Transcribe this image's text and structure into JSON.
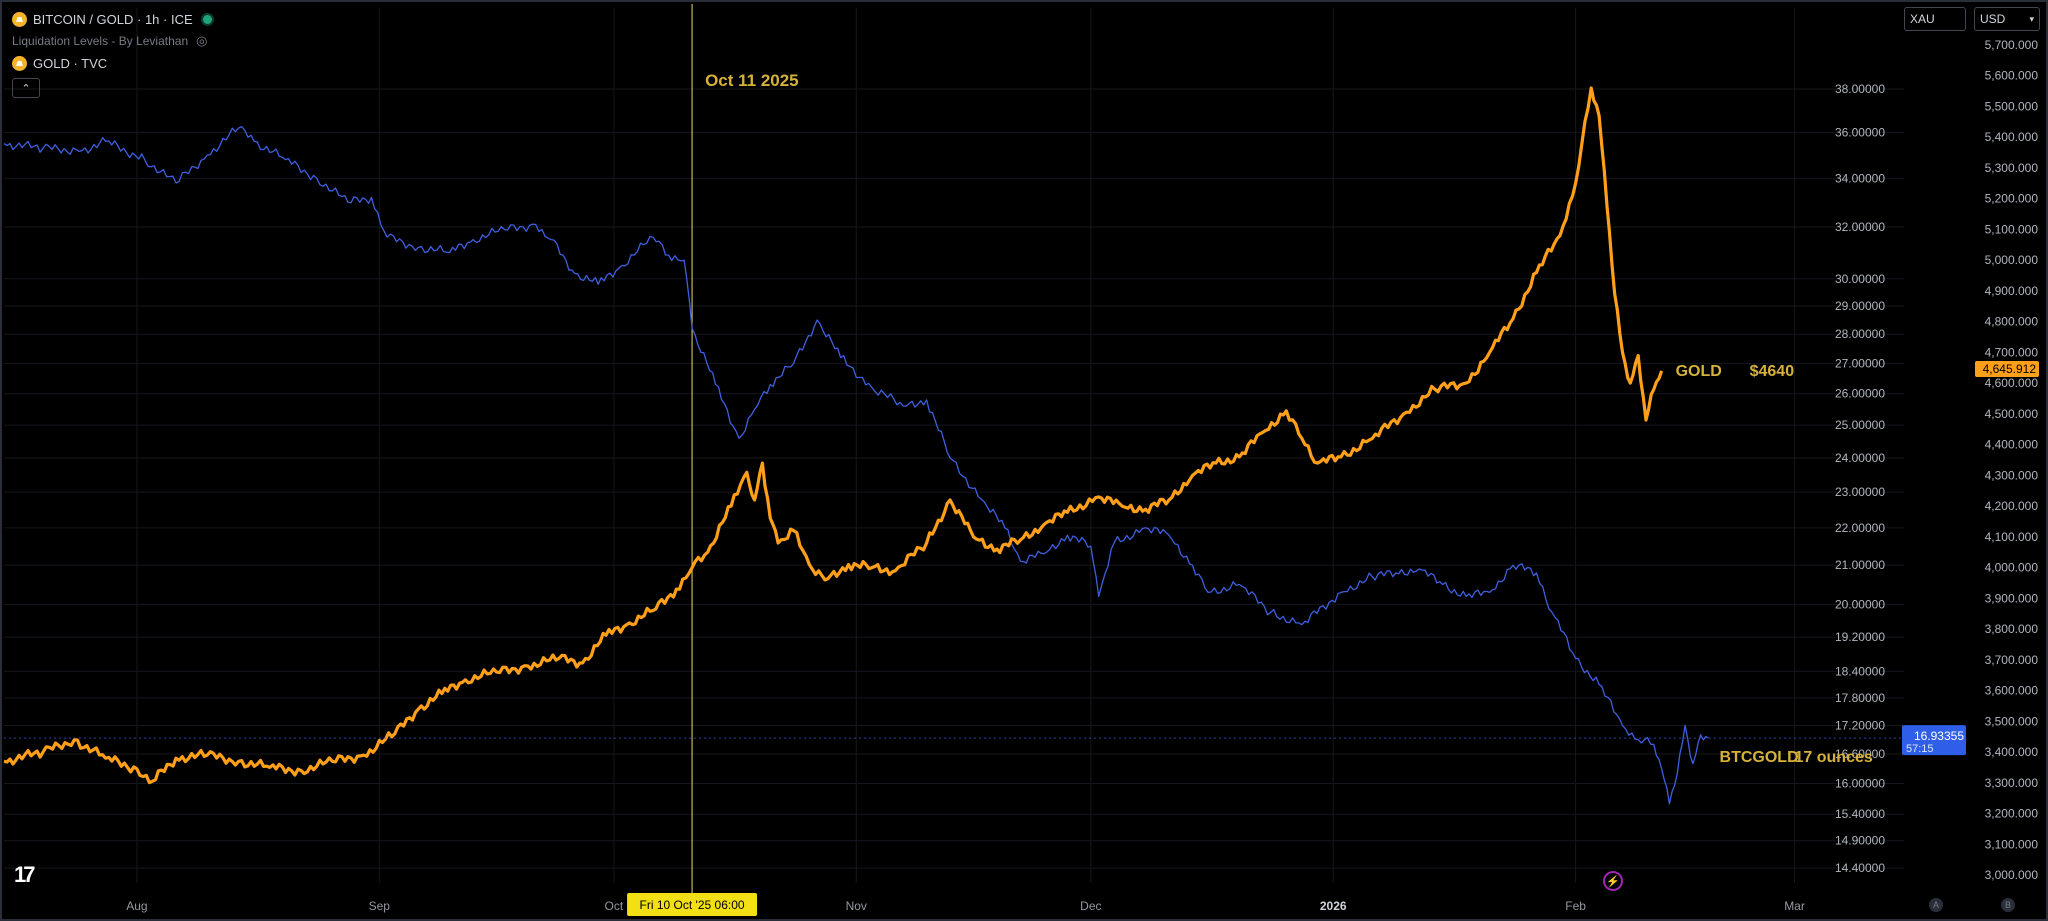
{
  "legend": {
    "symbol_title": "BITCOIN / GOLD · 1h · ICE",
    "indicator": "Liquidation Levels - By Leviathan",
    "overlay": "GOLD · TVC"
  },
  "controls": {
    "left_box": "XAU",
    "right_box": "USD"
  },
  "footer": {
    "button_a": "A",
    "button_b": "B"
  },
  "colors": {
    "btcgold": "#3f5fe0",
    "gold": "#ff9f1a",
    "annotation": "#d6b23a",
    "crosshair": "#e8d96a",
    "label_bg": "#f2e014"
  },
  "chart_data": {
    "type": "line",
    "x_labels": [
      "Aug",
      "Sep",
      "Oct",
      "Nov",
      "Dec",
      "2026",
      "Feb",
      "Mar"
    ],
    "x_range": [
      "2025-07-15",
      "2026-03-15"
    ],
    "series": [
      {
        "name": "BTCGOLD",
        "axis": "left-scale",
        "points": [
          [
            "2025-07-15",
            35.5
          ],
          [
            "2025-07-20",
            35.3
          ],
          [
            "2025-07-25",
            35.2
          ],
          [
            "2025-07-28",
            35.6
          ],
          [
            "2025-08-02",
            34.8
          ],
          [
            "2025-08-06",
            33.8
          ],
          [
            "2025-08-10",
            35.0
          ],
          [
            "2025-08-14",
            36.2
          ],
          [
            "2025-08-16",
            35.6
          ],
          [
            "2025-08-20",
            34.8
          ],
          [
            "2025-08-24",
            34.0
          ],
          [
            "2025-08-28",
            33.0
          ],
          [
            "2025-08-31",
            33.2
          ],
          [
            "2025-09-02",
            31.6
          ],
          [
            "2025-09-06",
            31.2
          ],
          [
            "2025-09-10",
            31.0
          ],
          [
            "2025-09-13",
            31.5
          ],
          [
            "2025-09-17",
            31.9
          ],
          [
            "2025-09-21",
            32.1
          ],
          [
            "2025-09-23",
            31.5
          ],
          [
            "2025-09-26",
            30.2
          ],
          [
            "2025-09-29",
            29.8
          ],
          [
            "2025-10-02",
            30.5
          ],
          [
            "2025-10-06",
            31.6
          ],
          [
            "2025-10-08",
            30.9
          ],
          [
            "2025-10-10",
            30.7
          ],
          [
            "2025-10-11",
            28.2
          ],
          [
            "2025-10-14",
            26.3
          ],
          [
            "2025-10-17",
            24.6
          ],
          [
            "2025-10-19",
            25.5
          ],
          [
            "2025-10-21",
            26.3
          ],
          [
            "2025-10-24",
            27.0
          ],
          [
            "2025-10-27",
            28.5
          ],
          [
            "2025-10-30",
            27.2
          ],
          [
            "2025-11-03",
            26.2
          ],
          [
            "2025-11-07",
            25.6
          ],
          [
            "2025-11-10",
            25.8
          ],
          [
            "2025-11-13",
            24.0
          ],
          [
            "2025-11-17",
            22.8
          ],
          [
            "2025-11-20",
            22.0
          ],
          [
            "2025-11-22",
            21.1
          ],
          [
            "2025-11-25",
            21.3
          ],
          [
            "2025-11-28",
            21.8
          ],
          [
            "2025-12-01",
            21.5
          ],
          [
            "2025-12-02",
            20.2
          ],
          [
            "2025-12-04",
            21.6
          ],
          [
            "2025-12-08",
            22.0
          ],
          [
            "2025-12-11",
            21.8
          ],
          [
            "2025-12-14",
            21.0
          ],
          [
            "2025-12-16",
            20.3
          ],
          [
            "2025-12-20",
            20.5
          ],
          [
            "2025-12-24",
            19.8
          ],
          [
            "2025-12-28",
            19.5
          ],
          [
            "2026-01-02",
            20.3
          ],
          [
            "2026-01-06",
            20.7
          ],
          [
            "2026-01-09",
            20.8
          ],
          [
            "2026-01-12",
            20.9
          ],
          [
            "2026-01-15",
            20.5
          ],
          [
            "2026-01-18",
            20.2
          ],
          [
            "2026-01-21",
            20.3
          ],
          [
            "2026-01-24",
            21.0
          ],
          [
            "2026-01-27",
            20.8
          ],
          [
            "2026-01-29",
            19.8
          ],
          [
            "2026-02-01",
            18.7
          ],
          [
            "2026-02-04",
            18.1
          ],
          [
            "2026-02-07",
            17.2
          ],
          [
            "2026-02-09",
            16.9
          ],
          [
            "2026-02-11",
            16.8
          ],
          [
            "2026-02-12",
            16.3
          ],
          [
            "2026-02-13",
            15.6
          ],
          [
            "2026-02-14",
            16.2
          ],
          [
            "2026-02-15",
            17.2
          ],
          [
            "2026-02-16",
            16.4
          ],
          [
            "2026-02-17",
            17.0
          ],
          [
            "2026-02-18",
            16.93
          ]
        ]
      },
      {
        "name": "GOLD",
        "axis": "right-scale",
        "points": [
          [
            "2025-07-15",
            3370
          ],
          [
            "2025-07-20",
            3400
          ],
          [
            "2025-07-24",
            3440
          ],
          [
            "2025-07-28",
            3380
          ],
          [
            "2025-08-01",
            3345
          ],
          [
            "2025-08-03",
            3305
          ],
          [
            "2025-08-06",
            3380
          ],
          [
            "2025-08-10",
            3390
          ],
          [
            "2025-08-14",
            3370
          ],
          [
            "2025-08-18",
            3350
          ],
          [
            "2025-08-22",
            3340
          ],
          [
            "2025-08-26",
            3370
          ],
          [
            "2025-08-30",
            3390
          ],
          [
            "2025-09-03",
            3460
          ],
          [
            "2025-09-06",
            3540
          ],
          [
            "2025-09-09",
            3590
          ],
          [
            "2025-09-12",
            3635
          ],
          [
            "2025-09-16",
            3660
          ],
          [
            "2025-09-20",
            3680
          ],
          [
            "2025-09-24",
            3705
          ],
          [
            "2025-09-27",
            3690
          ],
          [
            "2025-09-30",
            3780
          ],
          [
            "2025-10-03",
            3820
          ],
          [
            "2025-10-06",
            3860
          ],
          [
            "2025-10-09",
            3930
          ],
          [
            "2025-10-11",
            4000
          ],
          [
            "2025-10-13",
            4050
          ],
          [
            "2025-10-16",
            4200
          ],
          [
            "2025-10-18",
            4310
          ],
          [
            "2025-10-19",
            4220
          ],
          [
            "2025-10-20",
            4340
          ],
          [
            "2025-10-21",
            4160
          ],
          [
            "2025-10-22",
            4080
          ],
          [
            "2025-10-24",
            4120
          ],
          [
            "2025-10-26",
            4010
          ],
          [
            "2025-10-28",
            3960
          ],
          [
            "2025-10-31",
            4010
          ],
          [
            "2025-11-03",
            4000
          ],
          [
            "2025-11-06",
            3990
          ],
          [
            "2025-11-10",
            4080
          ],
          [
            "2025-11-13",
            4220
          ],
          [
            "2025-11-16",
            4100
          ],
          [
            "2025-11-19",
            4060
          ],
          [
            "2025-11-22",
            4090
          ],
          [
            "2025-11-25",
            4140
          ],
          [
            "2025-11-28",
            4180
          ],
          [
            "2025-12-02",
            4230
          ],
          [
            "2025-12-05",
            4200
          ],
          [
            "2025-12-08",
            4190
          ],
          [
            "2025-12-11",
            4220
          ],
          [
            "2025-12-14",
            4300
          ],
          [
            "2025-12-17",
            4340
          ],
          [
            "2025-12-20",
            4360
          ],
          [
            "2025-12-23",
            4440
          ],
          [
            "2025-12-26",
            4510
          ],
          [
            "2025-12-28",
            4420
          ],
          [
            "2025-12-30",
            4340
          ],
          [
            "2026-01-02",
            4360
          ],
          [
            "2026-01-06",
            4420
          ],
          [
            "2026-01-10",
            4500
          ],
          [
            "2026-01-14",
            4580
          ],
          [
            "2026-01-18",
            4600
          ],
          [
            "2026-01-21",
            4700
          ],
          [
            "2026-01-24",
            4810
          ],
          [
            "2026-01-27",
            4960
          ],
          [
            "2026-01-30",
            5080
          ],
          [
            "2026-02-01",
            5250
          ],
          [
            "2026-02-03",
            5560
          ],
          [
            "2026-02-04",
            5470
          ],
          [
            "2026-02-05",
            5180
          ],
          [
            "2026-02-06",
            4890
          ],
          [
            "2026-02-07",
            4700
          ],
          [
            "2026-02-08",
            4600
          ],
          [
            "2026-02-09",
            4690
          ],
          [
            "2026-02-10",
            4480
          ],
          [
            "2026-02-11",
            4580
          ],
          [
            "2026-02-12",
            4640
          ]
        ]
      }
    ],
    "left_scale": {
      "ticks": [
        "38.00000",
        "36.00000",
        "34.00000",
        "32.00000",
        "30.00000",
        "29.00000",
        "28.00000",
        "27.00000",
        "26.00000",
        "25.00000",
        "24.00000",
        "23.00000",
        "22.00000",
        "21.00000",
        "20.00000",
        "19.20000",
        "18.40000",
        "17.80000",
        "17.20000",
        "16.60000",
        "16.00000",
        "15.40000",
        "14.90000",
        "14.40000"
      ],
      "range": [
        14.1,
        39.3
      ]
    },
    "right_scale": {
      "ticks": [
        "5,700.000",
        "5,600.000",
        "5,500.000",
        "5,400.000",
        "5,300.000",
        "5,200.000",
        "5,100.000",
        "5,000.000",
        "4,900.000",
        "4,800.000",
        "4,700.000",
        "4,600.000",
        "4,500.000",
        "4,400.000",
        "4,300.000",
        "4,200.000",
        "4,100.000",
        "4,000.000",
        "3,900.000",
        "3,800.000",
        "3,700.000",
        "3,600.000",
        "3,500.000",
        "3,400.000",
        "3,300.000",
        "3,200.000",
        "3,100.000",
        "3,000.000"
      ],
      "range": [
        3000,
        5700
      ]
    },
    "price_tags": {
      "gold": "4,645.912",
      "btcgold": "16.93355",
      "countdown": "57:15"
    },
    "vertical_marker": {
      "date": "2025-10-11",
      "label": "Oct 11 2025",
      "axis_label": "Fri 10 Oct '25   06:00"
    },
    "annotations": [
      {
        "series": "GOLD",
        "text": "GOLD",
        "value": "$4640"
      },
      {
        "series": "BTCGOLD",
        "text": "BTCGOLD",
        "value": "17 ounces"
      }
    ]
  }
}
